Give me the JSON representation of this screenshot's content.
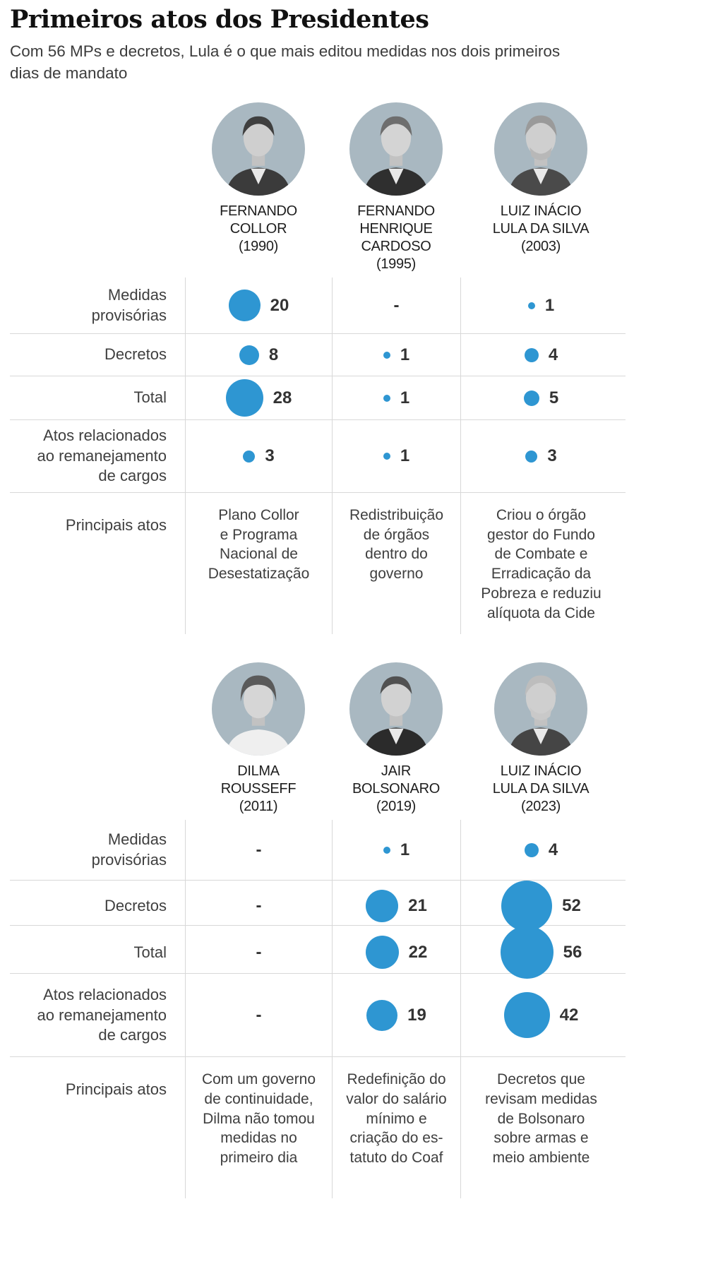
{
  "page": {
    "title": "Primeiros atos dos Presidentes",
    "subtitle": "Com 56 MPs e decretos, Lula é o que mais editou medidas nos dois primeiros dias de mandato"
  },
  "row_labels": {
    "mp": "Medidas\nprovisórias",
    "dec": "Decretos",
    "total": "Total",
    "atos": "Atos relacionados\nao remanejamento\nde cargos",
    "princ": "Principais atos"
  },
  "colors": {
    "bubble": "#2e96d2",
    "portrait_bg": "#a9b8c1",
    "grid_line": "#d8d8d8"
  },
  "chart_data": {
    "type": "bubble-table",
    "title": "Primeiros atos dos Presidentes",
    "subtitle": "Com 56 MPs e decretos, Lula é o que mais editou medidas nos dois primeiros dias de mandato",
    "rows": [
      "Medidas provisórias",
      "Decretos",
      "Total",
      "Atos relacionados ao remanejamento de cargos",
      "Principais atos"
    ],
    "bubble_encoding": "area proportional to value",
    "sections": [
      {
        "presidents": [
          {
            "header": "FERNANDO\nCOLLOR\n(1990)",
            "values": {
              "mp": 20,
              "dec": 8,
              "total": 28,
              "atos": 3
            },
            "principais": "Plano Collor\ne Programa\nNacional de\nDesestatização"
          },
          {
            "header": "FERNANDO\nHENRIQUE CARDOSO\n(1995)",
            "values": {
              "mp": null,
              "dec": 1,
              "total": 1,
              "atos": 1
            },
            "principais": "Redistribuição\nde órgãos\ndentro do\ngoverno"
          },
          {
            "header": "LUIZ INÁCIO\nLULA DA SILVA\n(2003)",
            "values": {
              "mp": 1,
              "dec": 4,
              "total": 5,
              "atos": 3
            },
            "principais": "Criou o órgão\ngestor do Fundo\nde Combate e\nErradicação da\nPobreza e reduziu\nalíquota da Cide"
          }
        ]
      },
      {
        "presidents": [
          {
            "header": "DILMA\nROUSSEFF\n(2011)",
            "values": {
              "mp": null,
              "dec": null,
              "total": null,
              "atos": null
            },
            "principais": "Com um governo\nde continuidade,\nDilma não tomou\nmedidas no\nprimeiro dia"
          },
          {
            "header": "JAIR\nBOLSONARO\n(2019)",
            "values": {
              "mp": 1,
              "dec": 21,
              "total": 22,
              "atos": 19
            },
            "principais": "Redefinição do\nvalor do salário\nmínimo e\ncriação do es-\ntatuto do Coaf"
          },
          {
            "header": "LUIZ INÁCIO\nLULA DA SILVA\n(2023)",
            "values": {
              "mp": 4,
              "dec": 52,
              "total": 56,
              "atos": 42
            },
            "principais": "Decretos que\nrevisam medidas\nde Bolsonaro\nsobre armas e\nmeio ambiente"
          }
        ]
      }
    ]
  }
}
